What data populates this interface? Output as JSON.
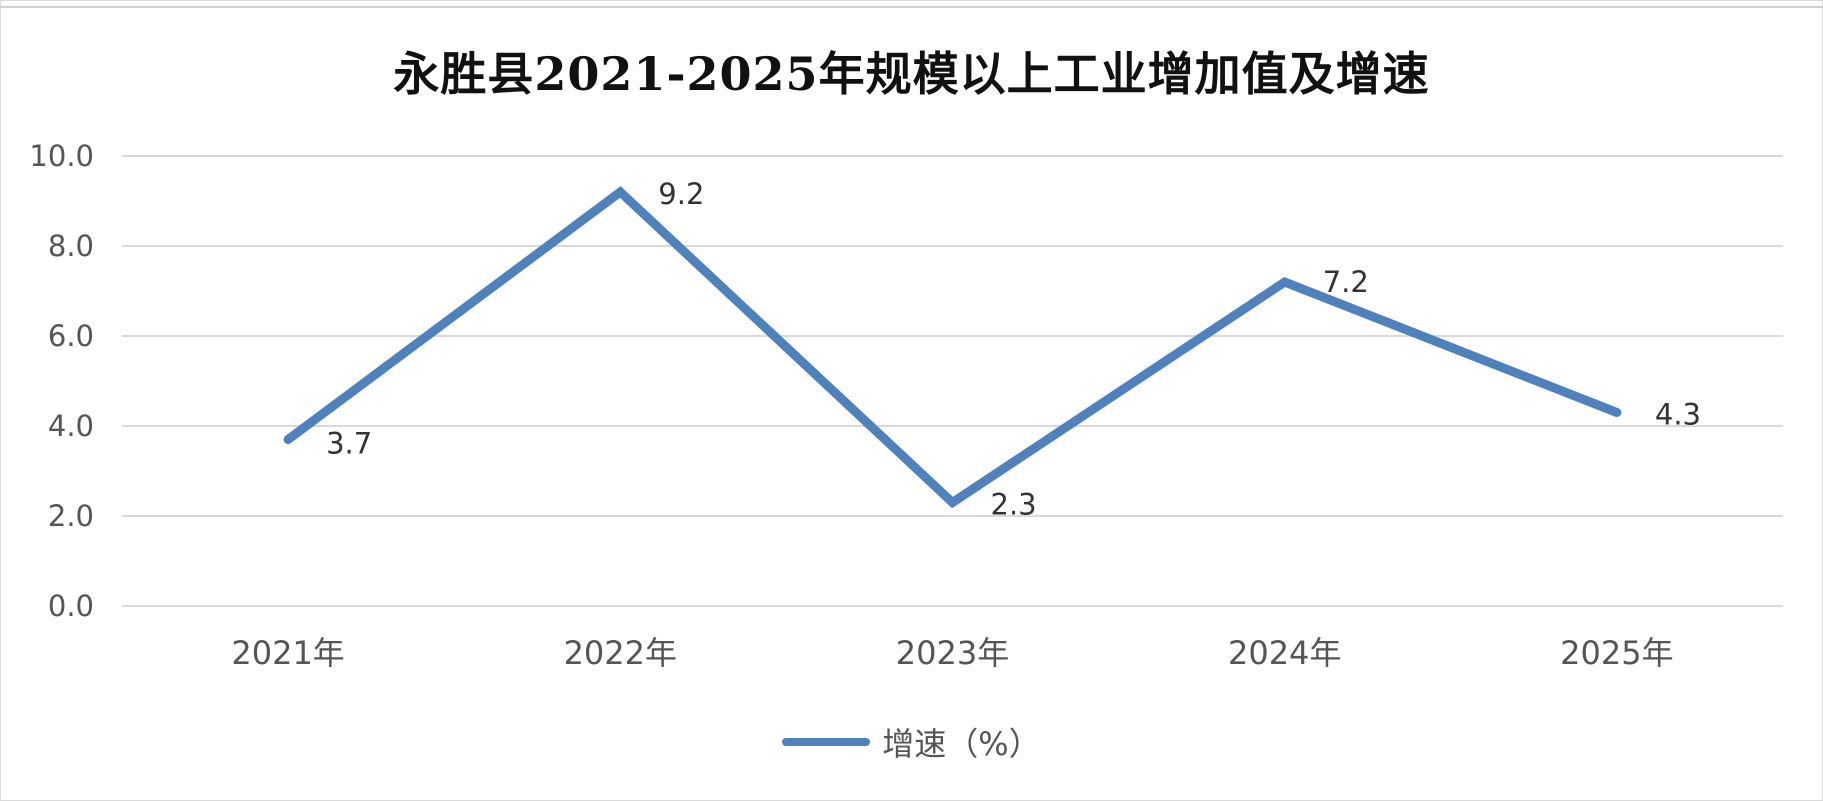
{
  "chart_data": {
    "type": "line",
    "title": "永胜县2021-2025年规模以上工业增加值及增速",
    "categories": [
      "2021年",
      "2022年",
      "2023年",
      "2024年",
      "2025年"
    ],
    "series": [
      {
        "name": "增速（%）",
        "values": [
          3.7,
          9.2,
          2.3,
          7.2,
          4.3
        ]
      }
    ],
    "ylim": [
      0,
      10
    ],
    "yticks": [
      "0.0",
      "2.0",
      "4.0",
      "6.0",
      "8.0",
      "10.0"
    ],
    "data_labels": [
      "3.7",
      "9.2",
      "2.3",
      "7.2",
      "4.3"
    ],
    "grid": true,
    "legend_position": "bottom",
    "line_color": "#4f81bd",
    "grid_color": "#d9d9d9"
  }
}
